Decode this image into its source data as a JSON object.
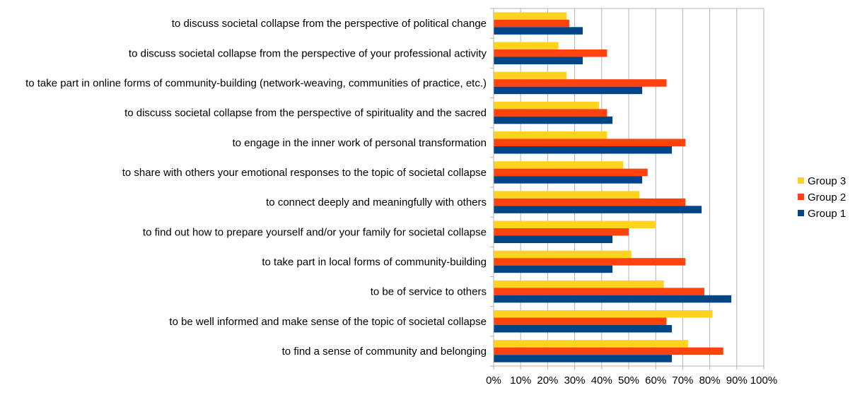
{
  "chart_data": {
    "type": "bar",
    "orientation": "horizontal",
    "categories": [
      "to discuss societal collapse from the perspective of political change",
      "to discuss societal collapse from the perspective of your professional activity",
      "to take part in online forms of community-building (network-weaving, communities of practice, etc.)",
      "to discuss societal collapse from the perspective of spirituality and the sacred",
      "to engage in the inner work of personal transformation",
      "to share with others your emotional responses to the topic of societal collapse",
      "to connect deeply and meaningfully with others",
      "to find out how to prepare yourself and/or your family for societal collapse",
      "to take part in local forms of community-building",
      "to be of service to others",
      "to be well informed and make sense of the topic of societal collapse",
      "to find a sense of community and belonging"
    ],
    "series": [
      {
        "name": "Group 3",
        "color": "#FFD320",
        "values": [
          27,
          24,
          27,
          39,
          42,
          48,
          54,
          60,
          51,
          63,
          81,
          72
        ]
      },
      {
        "name": "Group 2",
        "color": "#FF420E",
        "values": [
          28,
          42,
          64,
          42,
          71,
          57,
          71,
          50,
          71,
          78,
          64,
          85
        ]
      },
      {
        "name": "Group 1",
        "color": "#004586",
        "values": [
          33,
          33,
          55,
          44,
          66,
          55,
          77,
          44,
          44,
          88,
          66,
          66
        ]
      }
    ],
    "xlim": [
      0,
      100
    ],
    "xticks": [
      "0%",
      "10%",
      "20%",
      "30%",
      "40%",
      "50%",
      "60%",
      "70%",
      "80%",
      "90%",
      "100%"
    ],
    "grid": true,
    "legend_position": "right",
    "legend_order": [
      "Group 3",
      "Group 2",
      "Group 1"
    ]
  }
}
